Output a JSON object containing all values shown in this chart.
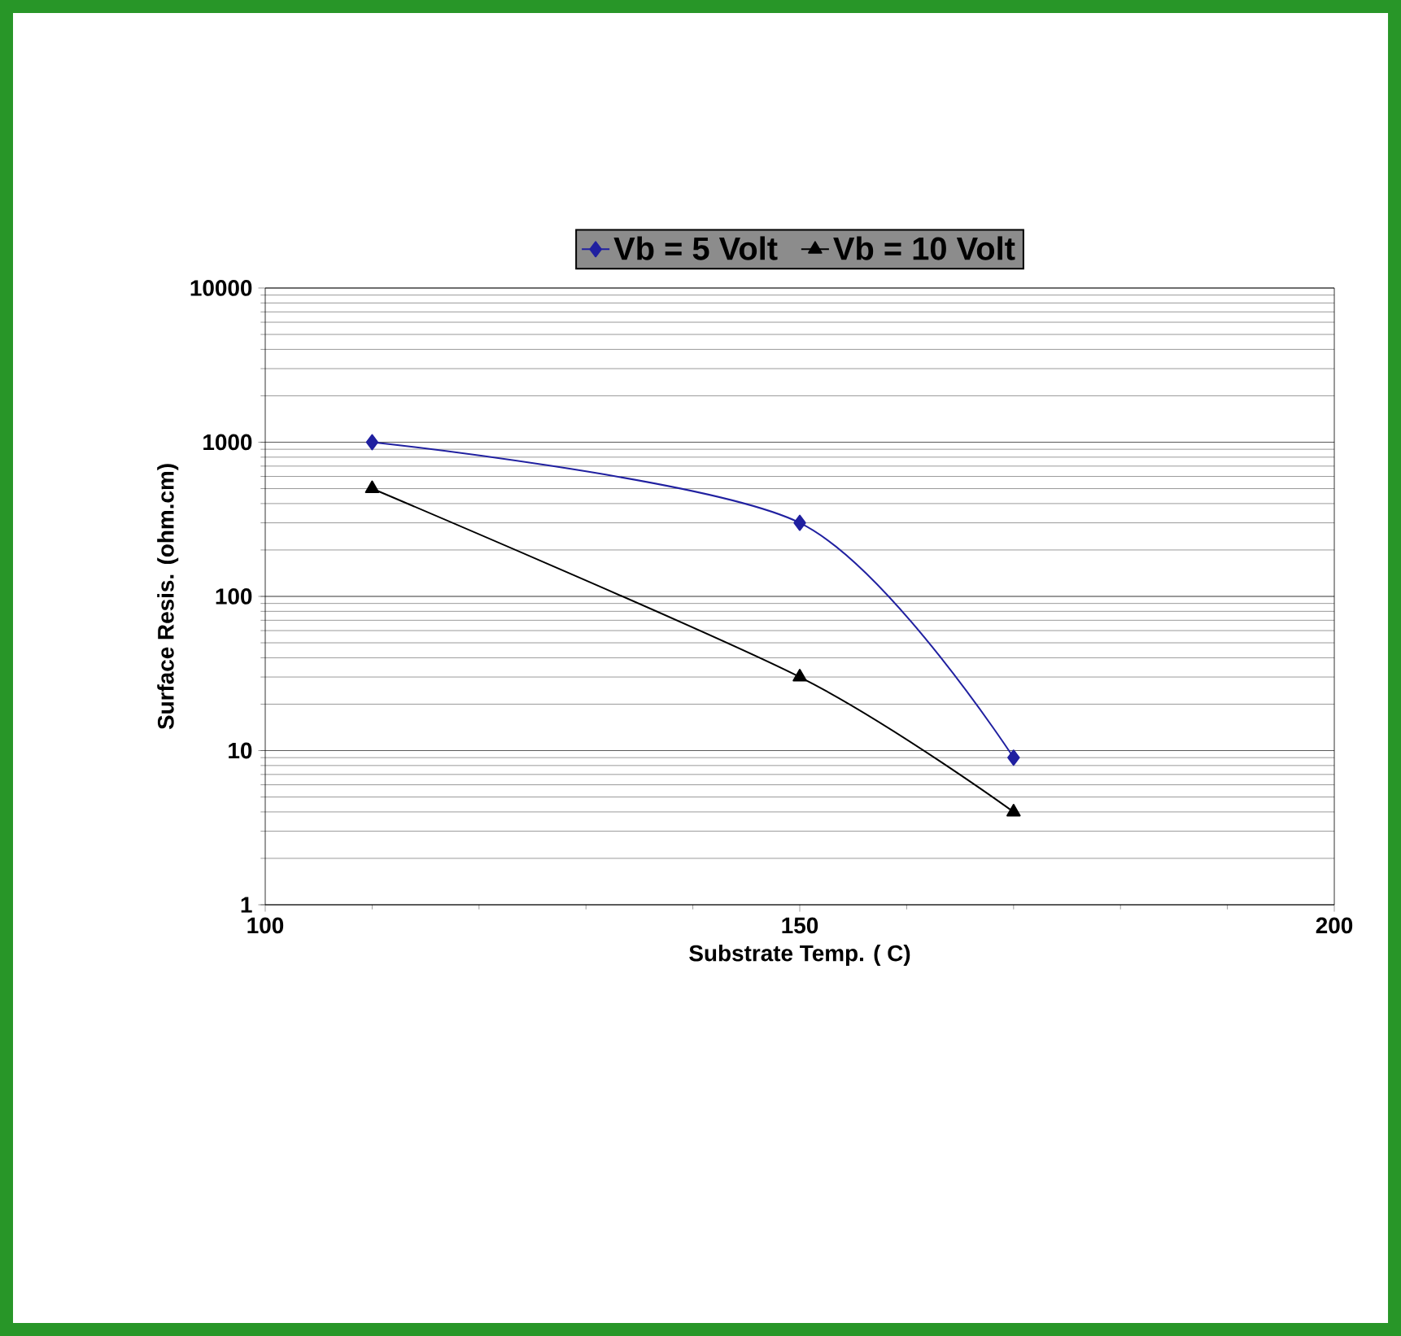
{
  "chart_data": {
    "type": "line",
    "xlabel": "Substrate Temp. (  C)",
    "ylabel": "Surface Resis. (ohm.cm)",
    "x": [
      110,
      150,
      170
    ],
    "series": [
      {
        "name": "Vb = 5 Volt",
        "color": "#2020a0",
        "marker": "diamond",
        "values": [
          1000,
          300,
          9
        ]
      },
      {
        "name": "Vb = 10 Volt",
        "color": "#000000",
        "marker": "triangle",
        "values": [
          500,
          30,
          4
        ]
      }
    ],
    "xlim": [
      100,
      200
    ],
    "xticks": [
      100,
      150,
      200
    ],
    "ylim": [
      1,
      10000
    ],
    "yticks": [
      1,
      10,
      100,
      1000,
      10000
    ],
    "log": "y",
    "grid": "y",
    "legend": "top"
  }
}
